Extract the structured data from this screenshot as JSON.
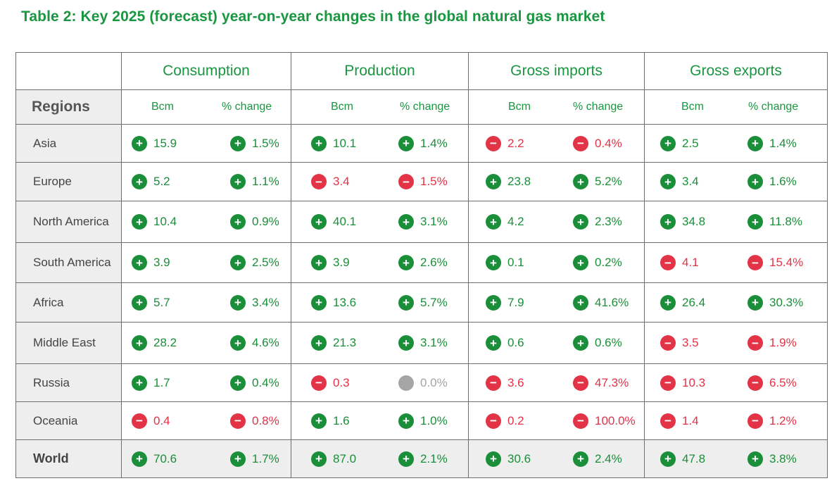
{
  "title": "Table 2: Key 2025 (forecast) year-on-year changes in the global natural gas market",
  "colors": {
    "accent": "#1a9640",
    "positive": "#1b8e3a",
    "negative": "#e23347",
    "neutral": "#a5a5a5",
    "label_bg": "#eeeeee"
  },
  "icons": {
    "up": "plus-circle-icon",
    "down": "minus-circle-icon",
    "zero": "neutral-circle-icon"
  },
  "table": {
    "groups": [
      "Consumption",
      "Production",
      "Gross imports",
      "Gross exports"
    ],
    "regions_header": "Regions",
    "sub_bcm": "Bcm",
    "sub_pct": "% change",
    "rows": [
      {
        "region": "Asia",
        "cells": [
          {
            "v": "15.9",
            "d": "up"
          },
          {
            "v": "1.5%",
            "d": "up"
          },
          {
            "v": "10.1",
            "d": "up"
          },
          {
            "v": "1.4%",
            "d": "up"
          },
          {
            "v": "2.2",
            "d": "down"
          },
          {
            "v": "0.4%",
            "d": "down"
          },
          {
            "v": "2.5",
            "d": "up"
          },
          {
            "v": "1.4%",
            "d": "up"
          }
        ]
      },
      {
        "region": "Europe",
        "cells": [
          {
            "v": "5.2",
            "d": "up"
          },
          {
            "v": "1.1%",
            "d": "up"
          },
          {
            "v": "3.4",
            "d": "down"
          },
          {
            "v": "1.5%",
            "d": "down"
          },
          {
            "v": "23.8",
            "d": "up"
          },
          {
            "v": "5.2%",
            "d": "up"
          },
          {
            "v": "3.4",
            "d": "up"
          },
          {
            "v": "1.6%",
            "d": "up"
          }
        ]
      },
      {
        "region": "North America",
        "cells": [
          {
            "v": "10.4",
            "d": "up"
          },
          {
            "v": "0.9%",
            "d": "up"
          },
          {
            "v": "40.1",
            "d": "up"
          },
          {
            "v": "3.1%",
            "d": "up"
          },
          {
            "v": "4.2",
            "d": "up"
          },
          {
            "v": "2.3%",
            "d": "up"
          },
          {
            "v": "34.8",
            "d": "up"
          },
          {
            "v": "11.8%",
            "d": "up"
          }
        ]
      },
      {
        "region": "South America",
        "cells": [
          {
            "v": "3.9",
            "d": "up"
          },
          {
            "v": "2.5%",
            "d": "up"
          },
          {
            "v": "3.9",
            "d": "up"
          },
          {
            "v": "2.6%",
            "d": "up"
          },
          {
            "v": "0.1",
            "d": "up"
          },
          {
            "v": "0.2%",
            "d": "up"
          },
          {
            "v": "4.1",
            "d": "down"
          },
          {
            "v": "15.4%",
            "d": "down"
          }
        ]
      },
      {
        "region": "Africa",
        "cells": [
          {
            "v": "5.7",
            "d": "up"
          },
          {
            "v": "3.4%",
            "d": "up"
          },
          {
            "v": "13.6",
            "d": "up"
          },
          {
            "v": "5.7%",
            "d": "up"
          },
          {
            "v": "7.9",
            "d": "up"
          },
          {
            "v": "41.6%",
            "d": "up"
          },
          {
            "v": "26.4",
            "d": "up"
          },
          {
            "v": "30.3%",
            "d": "up"
          }
        ]
      },
      {
        "region": "Middle East",
        "cells": [
          {
            "v": "28.2",
            "d": "up"
          },
          {
            "v": "4.6%",
            "d": "up"
          },
          {
            "v": "21.3",
            "d": "up"
          },
          {
            "v": "3.1%",
            "d": "up"
          },
          {
            "v": "0.6",
            "d": "up"
          },
          {
            "v": "0.6%",
            "d": "up"
          },
          {
            "v": "3.5",
            "d": "down"
          },
          {
            "v": "1.9%",
            "d": "down"
          }
        ]
      },
      {
        "region": "Russia",
        "cells": [
          {
            "v": "1.7",
            "d": "up"
          },
          {
            "v": "0.4%",
            "d": "up"
          },
          {
            "v": "0.3",
            "d": "down"
          },
          {
            "v": "0.0%",
            "d": "zero"
          },
          {
            "v": "3.6",
            "d": "down"
          },
          {
            "v": "47.3%",
            "d": "down"
          },
          {
            "v": "10.3",
            "d": "down"
          },
          {
            "v": "6.5%",
            "d": "down"
          }
        ]
      },
      {
        "region": "Oceania",
        "cells": [
          {
            "v": "0.4",
            "d": "down"
          },
          {
            "v": "0.8%",
            "d": "down"
          },
          {
            "v": "1.6",
            "d": "up"
          },
          {
            "v": "1.0%",
            "d": "up"
          },
          {
            "v": "0.2",
            "d": "down"
          },
          {
            "v": "100.0%",
            "d": "down"
          },
          {
            "v": "1.4",
            "d": "down"
          },
          {
            "v": "1.2%",
            "d": "down"
          }
        ]
      }
    ],
    "world": {
      "region": "World",
      "cells": [
        {
          "v": "70.6",
          "d": "up"
        },
        {
          "v": "1.7%",
          "d": "up"
        },
        {
          "v": "87.0",
          "d": "up"
        },
        {
          "v": "2.1%",
          "d": "up"
        },
        {
          "v": "30.6",
          "d": "up"
        },
        {
          "v": "2.4%",
          "d": "up"
        },
        {
          "v": "47.8",
          "d": "up"
        },
        {
          "v": "3.8%",
          "d": "up"
        }
      ]
    }
  }
}
